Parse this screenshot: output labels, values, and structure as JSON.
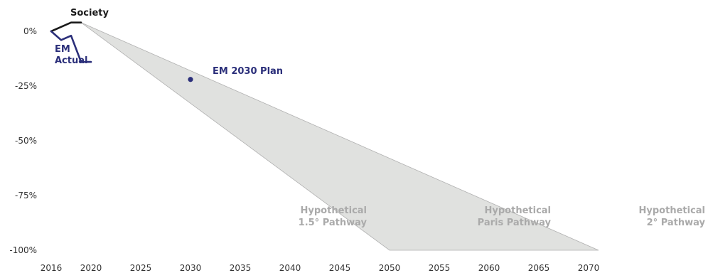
{
  "chart_data": {
    "type": "line",
    "title": "",
    "xlabel": "",
    "ylabel": "",
    "xlim": [
      2016,
      2071
    ],
    "ylim": [
      -100,
      5
    ],
    "x_ticks": [
      2016,
      2020,
      2025,
      2030,
      2035,
      2040,
      2045,
      2050,
      2055,
      2060,
      2065,
      2070
    ],
    "y_ticks": [
      {
        "value": 0,
        "label": "0%"
      },
      {
        "value": -25,
        "label": "-25%"
      },
      {
        "value": -50,
        "label": "-50%"
      },
      {
        "value": -75,
        "label": "-75%"
      },
      {
        "value": -100,
        "label": "-100%"
      }
    ],
    "grid": false,
    "series": [
      {
        "name": "Society",
        "color": "#1a1a1a",
        "x": [
          2016,
          2017,
          2018,
          2019
        ],
        "y": [
          0,
          2,
          4,
          4
        ]
      },
      {
        "name": "EM Actual",
        "name_lines": [
          "EM",
          "Actual"
        ],
        "color": "#2b2f7a",
        "x": [
          2016,
          2017,
          2018,
          2019,
          2020
        ],
        "y": [
          0,
          -4,
          -2,
          -14,
          -14
        ]
      }
    ],
    "points": [
      {
        "name": "EM 2030 Plan",
        "x": 2030,
        "y": -22,
        "color": "#2b2f7a"
      }
    ],
    "area": {
      "color": "#e0e1df",
      "stroke": "#b0b0b0",
      "polygon": [
        [
          2019,
          4
        ],
        [
          2071,
          -100
        ],
        [
          2050,
          -100
        ]
      ]
    },
    "annotations": [
      {
        "lines": [
          "Hypothetical",
          "1.5° Pathway"
        ]
      },
      {
        "lines": [
          "Hypothetical",
          "Paris Pathway"
        ]
      },
      {
        "lines": [
          "Hypothetical",
          "2° Pathway"
        ]
      }
    ],
    "annotation_color": "#aaaaaa"
  }
}
